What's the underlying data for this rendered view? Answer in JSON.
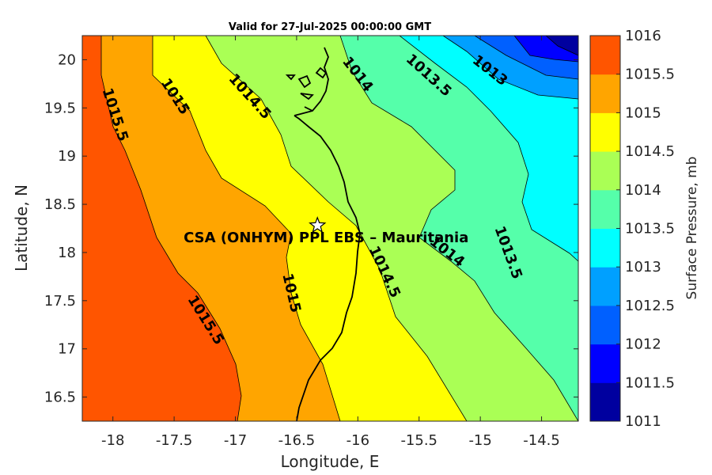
{
  "chart_data": {
    "type": "contour-map",
    "title": "Valid for 27-Jul-2025 00:00:00 GMT",
    "xlabel": "Longitude, E",
    "ylabel": "Latitude, N",
    "xlim": [
      -18.25,
      -14.2
    ],
    "ylim": [
      16.25,
      20.25
    ],
    "x_ticks": [
      -18,
      -17.5,
      -17,
      -16.5,
      -16,
      -15.5,
      -15,
      -14.5
    ],
    "y_ticks": [
      16.5,
      17,
      17.5,
      18,
      18.5,
      19,
      19.5,
      20
    ],
    "colorbar": {
      "label": "Surface Pressure, mb",
      "range": [
        1011,
        1016
      ],
      "ticks": [
        1011,
        1011.5,
        1012,
        1012.5,
        1013,
        1013.5,
        1014,
        1014.5,
        1015,
        1015.5,
        1016
      ],
      "colors": [
        "#00009f",
        "#0000ff",
        "#0060ff",
        "#00a0ff",
        "#00ffff",
        "#55ffaa",
        "#aaff55",
        "#ffff00",
        "#ffa500",
        "#ff5500"
      ]
    },
    "contour_levels": [
      1013,
      1013.5,
      1014,
      1014.5,
      1015,
      1015.5
    ],
    "contour_labels": [
      {
        "text": "1015.5",
        "lon": -17.98,
        "lat": 19.43,
        "angle": 72
      },
      {
        "text": "1015",
        "lon": -17.49,
        "lat": 19.62,
        "angle": 57
      },
      {
        "text": "1014.5",
        "lon": -16.88,
        "lat": 19.62,
        "angle": 48
      },
      {
        "text": "1014",
        "lon": -16.0,
        "lat": 19.85,
        "angle": 52
      },
      {
        "text": "1013.5",
        "lon": -15.42,
        "lat": 19.84,
        "angle": 42
      },
      {
        "text": "1013",
        "lon": -14.92,
        "lat": 19.89,
        "angle": 38
      },
      {
        "text": "1015.5",
        "lon": -17.24,
        "lat": 17.3,
        "angle": 58
      },
      {
        "text": "1015",
        "lon": -16.54,
        "lat": 17.58,
        "angle": 77
      },
      {
        "text": "1014.5",
        "lon": -15.78,
        "lat": 17.8,
        "angle": 65
      },
      {
        "text": "1014",
        "lon": -15.27,
        "lat": 18.01,
        "angle": 38
      },
      {
        "text": "1013.5",
        "lon": -14.77,
        "lat": 18.0,
        "angle": 70
      }
    ],
    "site": {
      "name": "CSA (ONHYM) PPL EBS  – Mauritania",
      "lon": -16.33,
      "lat": 18.28
    }
  }
}
